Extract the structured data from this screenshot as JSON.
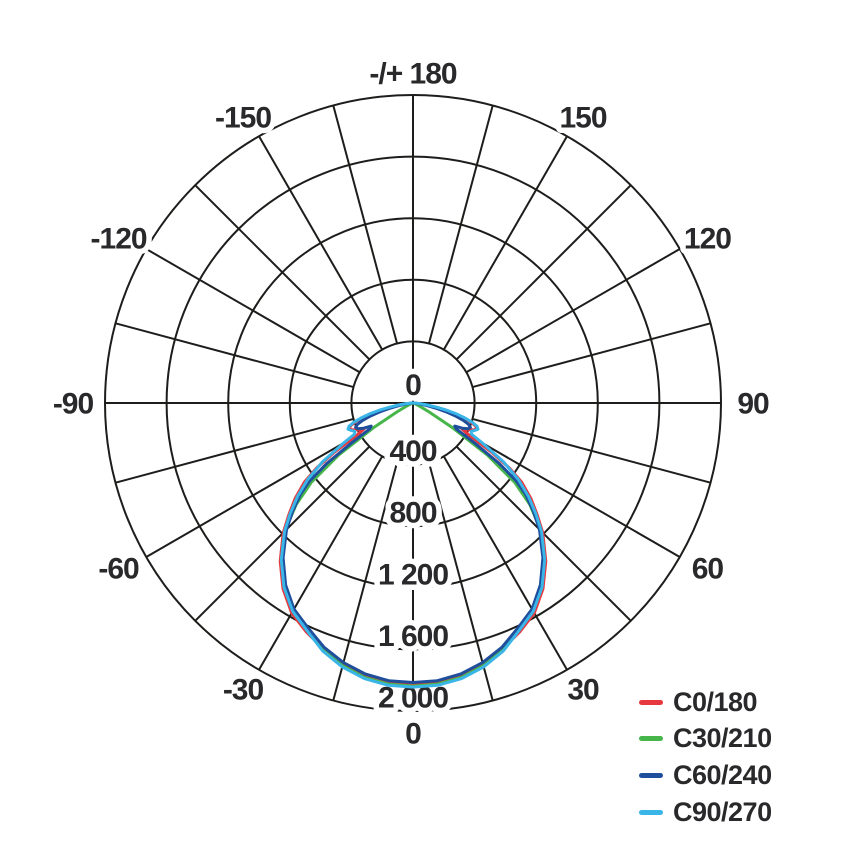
{
  "chart_data": {
    "type": "polar-line",
    "title": "",
    "rmax": 2000,
    "rings": [
      400,
      800,
      1200,
      1600,
      2000
    ],
    "radial_labels": [
      {
        "value": 0,
        "text": "0"
      },
      {
        "value": 400,
        "text": "400"
      },
      {
        "value": 800,
        "text": "800"
      },
      {
        "value": 1200,
        "text": "1 200"
      },
      {
        "value": 1600,
        "text": "1 600"
      },
      {
        "value": 2000,
        "text": "2 000"
      }
    ],
    "angle_labels": [
      {
        "value": 180,
        "text": "-/+ 180"
      },
      {
        "value": 150,
        "text": "150"
      },
      {
        "value": 120,
        "text": "120"
      },
      {
        "value": 90,
        "text": "90"
      },
      {
        "value": 60,
        "text": "60"
      },
      {
        "value": 30,
        "text": "30"
      },
      {
        "value": 0,
        "text": "0"
      },
      {
        "value": -30,
        "text": "-30"
      },
      {
        "value": -60,
        "text": "-60"
      },
      {
        "value": -90,
        "text": "-90"
      },
      {
        "value": -120,
        "text": "-120"
      },
      {
        "value": -150,
        "text": "-150"
      }
    ],
    "spoke_step_deg": 15,
    "grid_color": "#1d1d1b",
    "text_color": "#29292b",
    "legend_position": "bottom-right",
    "series": [
      {
        "name": "C0/180",
        "color": "#e6383e",
        "points": [
          [
            0,
            1830
          ],
          [
            5,
            1824
          ],
          [
            10,
            1800
          ],
          [
            15,
            1758
          ],
          [
            20,
            1700
          ],
          [
            25,
            1640
          ],
          [
            30,
            1575
          ],
          [
            35,
            1472
          ],
          [
            40,
            1342
          ],
          [
            45,
            1192
          ],
          [
            48,
            1085
          ],
          [
            51,
            985
          ],
          [
            54,
            870
          ],
          [
            56,
            755
          ],
          [
            58,
            600
          ],
          [
            60,
            430
          ],
          [
            62,
            360
          ],
          [
            64,
            395
          ],
          [
            66,
            430
          ],
          [
            68,
            448
          ],
          [
            70,
            430
          ],
          [
            72,
            390
          ],
          [
            74,
            330
          ],
          [
            76,
            262
          ],
          [
            78,
            190
          ],
          [
            80,
            124
          ],
          [
            82,
            70
          ],
          [
            84,
            34
          ],
          [
            86,
            14
          ],
          [
            88,
            5
          ],
          [
            90,
            0
          ]
        ]
      },
      {
        "name": "C30/210",
        "color": "#47b64a",
        "points": [
          [
            0,
            1838
          ],
          [
            5,
            1832
          ],
          [
            10,
            1809
          ],
          [
            15,
            1766
          ],
          [
            20,
            1708
          ],
          [
            25,
            1628
          ],
          [
            30,
            1560
          ],
          [
            35,
            1458
          ],
          [
            40,
            1328
          ],
          [
            43,
            1235
          ],
          [
            46,
            1128
          ],
          [
            49,
            1005
          ],
          [
            52,
            840
          ],
          [
            55,
            590
          ],
          [
            58,
            300
          ],
          [
            61,
            120
          ],
          [
            64,
            48
          ],
          [
            68,
            18
          ],
          [
            72,
            7
          ],
          [
            80,
            3
          ],
          [
            90,
            0
          ]
        ]
      },
      {
        "name": "C60/240",
        "color": "#1e4e9c",
        "points": [
          [
            0,
            1815
          ],
          [
            5,
            1810
          ],
          [
            10,
            1787
          ],
          [
            15,
            1745
          ],
          [
            20,
            1688
          ],
          [
            25,
            1612
          ],
          [
            30,
            1545
          ],
          [
            35,
            1442
          ],
          [
            40,
            1312
          ],
          [
            45,
            1162
          ],
          [
            48,
            1052
          ],
          [
            51,
            940
          ],
          [
            53,
            840
          ],
          [
            55,
            680
          ],
          [
            57,
            480
          ],
          [
            59,
            330
          ],
          [
            61,
            310
          ],
          [
            63,
            360
          ],
          [
            65,
            395
          ],
          [
            67,
            405
          ],
          [
            69,
            385
          ],
          [
            71,
            345
          ],
          [
            73,
            290
          ],
          [
            75,
            222
          ],
          [
            77,
            158
          ],
          [
            79,
            100
          ],
          [
            81,
            56
          ],
          [
            83,
            27
          ],
          [
            85,
            10
          ],
          [
            88,
            3
          ],
          [
            90,
            0
          ]
        ]
      },
      {
        "name": "C90/270",
        "color": "#3ab5e8",
        "points": [
          [
            0,
            1845
          ],
          [
            5,
            1840
          ],
          [
            10,
            1817
          ],
          [
            15,
            1774
          ],
          [
            20,
            1714
          ],
          [
            25,
            1630
          ],
          [
            30,
            1562
          ],
          [
            35,
            1460
          ],
          [
            40,
            1330
          ],
          [
            45,
            1180
          ],
          [
            48,
            1073
          ],
          [
            51,
            965
          ],
          [
            54,
            845
          ],
          [
            57,
            700
          ],
          [
            60,
            520
          ],
          [
            62,
            430
          ],
          [
            64,
            420
          ],
          [
            66,
            438
          ],
          [
            68,
            455
          ],
          [
            70,
            442
          ],
          [
            72,
            405
          ],
          [
            74,
            350
          ],
          [
            76,
            288
          ],
          [
            78,
            220
          ],
          [
            80,
            152
          ],
          [
            82,
            95
          ],
          [
            84,
            52
          ],
          [
            86,
            24
          ],
          [
            88,
            8
          ],
          [
            90,
            0
          ]
        ]
      }
    ]
  }
}
